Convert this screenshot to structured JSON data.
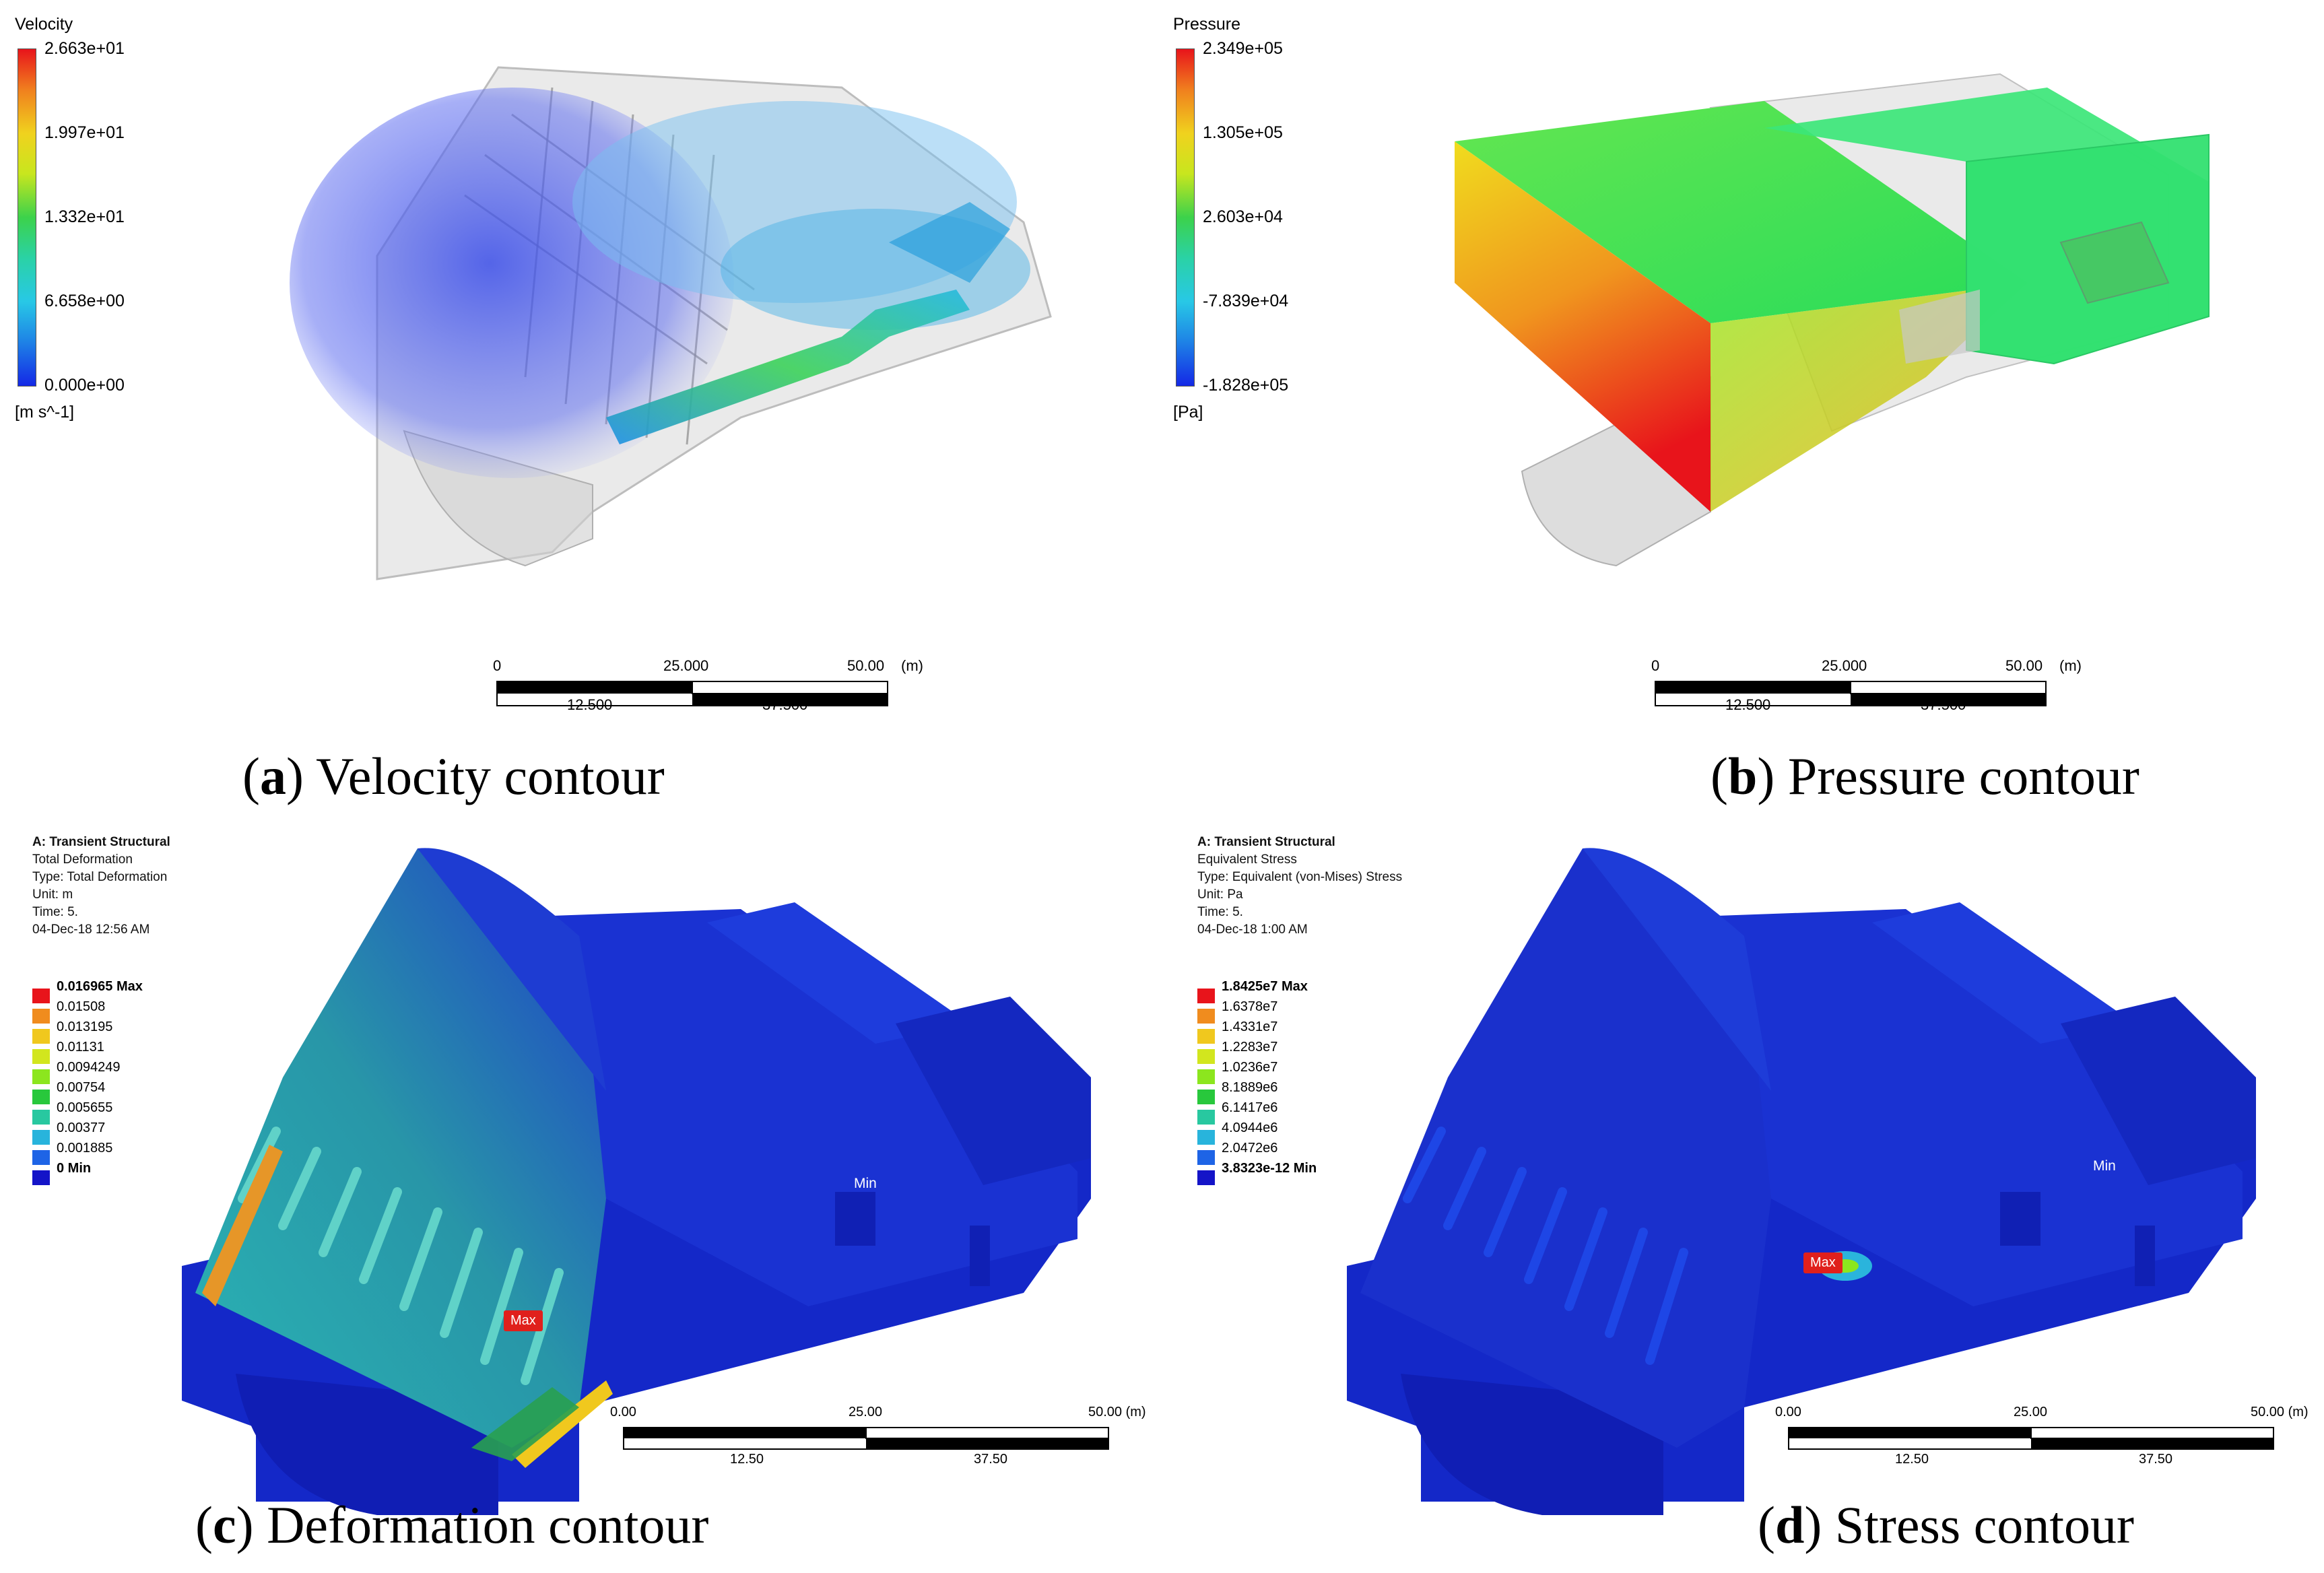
{
  "panel_a": {
    "legend_title": "Velocity",
    "legend_values": [
      "2.663e+01",
      "1.997e+01",
      "1.332e+01",
      "6.658e+00",
      "0.000e+00"
    ],
    "legend_unit": "[m s^-1]",
    "scale_top": [
      "0",
      "25.000",
      "50.00",
      "(m)"
    ],
    "scale_bottom": [
      "12.500",
      "37.500"
    ],
    "caption_letter": "a",
    "caption_text": "Velocity contour"
  },
  "panel_b": {
    "legend_title": "Pressure",
    "legend_values": [
      "2.349e+05",
      "1.305e+05",
      "2.603e+04",
      "-7.839e+04",
      "-1.828e+05"
    ],
    "legend_unit": "[Pa]",
    "scale_top": [
      "0",
      "25.000",
      "50.00",
      "(m)"
    ],
    "scale_bottom": [
      "12.500",
      "37.500"
    ],
    "caption_letter": "b",
    "caption_text": "Pressure contour"
  },
  "panel_c": {
    "info": [
      "A: Transient Structural",
      "Total Deformation",
      "Type: Total Deformation",
      "Unit: m",
      "Time: 5.",
      "04-Dec-18 12:56 AM"
    ],
    "legend_values": [
      "0.016965 Max",
      "0.01508",
      "0.013195",
      "0.01131",
      "0.0094249",
      "0.00754",
      "0.005655",
      "0.00377",
      "0.001885",
      "0 Min"
    ],
    "legend_colors": [
      "#e8141b",
      "#f08c1e",
      "#f0c81e",
      "#d2e61e",
      "#8ce61e",
      "#28c83c",
      "#28c8a0",
      "#28b4dc",
      "#1e64e6",
      "#1414c8"
    ],
    "max_tag": "Max",
    "min_tag": "Min",
    "scale_top": [
      "0.00",
      "25.00",
      "50.00 (m)"
    ],
    "scale_bottom": [
      "12.50",
      "37.50"
    ],
    "caption_letter": "c",
    "caption_text": "Deformation contour"
  },
  "panel_d": {
    "info": [
      "A: Transient Structural",
      "Equivalent Stress",
      "Type: Equivalent (von-Mises) Stress",
      "Unit: Pa",
      "Time: 5.",
      "04-Dec-18 1:00 AM"
    ],
    "legend_values": [
      "1.8425e7 Max",
      "1.6378e7",
      "1.4331e7",
      "1.2283e7",
      "1.0236e7",
      "8.1889e6",
      "6.1417e6",
      "4.0944e6",
      "2.0472e6",
      "3.8323e-12 Min"
    ],
    "legend_colors": [
      "#e8141b",
      "#f08c1e",
      "#f0c81e",
      "#d2e61e",
      "#8ce61e",
      "#28c83c",
      "#28c8a0",
      "#28b4dc",
      "#1e64e6",
      "#1414c8"
    ],
    "max_tag": "Max",
    "min_tag": "Min",
    "scale_top": [
      "0.00",
      "25.00",
      "50.00 (m)"
    ],
    "scale_bottom": [
      "12.50",
      "37.50"
    ],
    "caption_letter": "d",
    "caption_text": "Stress contour"
  }
}
